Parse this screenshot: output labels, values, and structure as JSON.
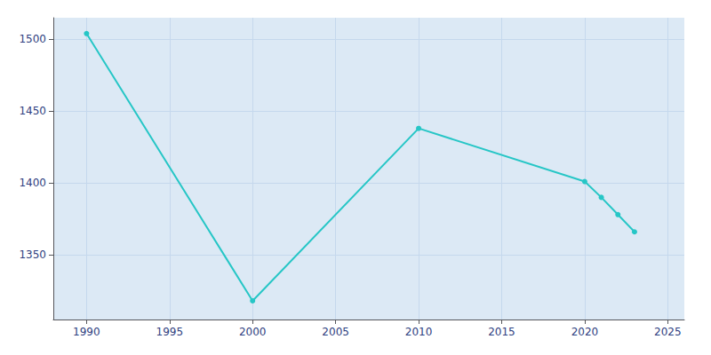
{
  "chart_data": {
    "type": "line",
    "x": [
      1990,
      2000,
      2010,
      2020,
      2021,
      2022,
      2023
    ],
    "values": [
      1504,
      1318,
      1438,
      1401,
      1390,
      1378,
      1366
    ],
    "color": "#26c6c6",
    "marker": "circle",
    "xlim": [
      1988,
      2026
    ],
    "xticks": [
      1990,
      1995,
      2000,
      2005,
      2010,
      2015,
      2020,
      2025
    ],
    "ylim": [
      1305,
      1515
    ],
    "yticks": [
      1350,
      1400,
      1450,
      1500
    ],
    "grid": true
  }
}
